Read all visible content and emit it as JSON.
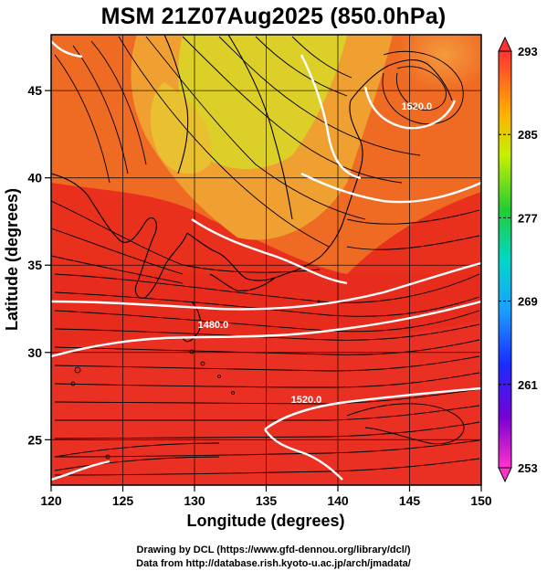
{
  "title": "MSM 21Z07Aug2025 (850.0hPa)",
  "map": {
    "xlabel": "Longitude (degrees)",
    "ylabel": "Latitude  (degrees)",
    "lon_range": [
      120,
      150
    ],
    "lat_range": [
      22.4,
      48.2
    ],
    "lon_ticks": [
      120,
      125,
      130,
      135,
      140,
      145,
      150
    ],
    "lat_ticks": [
      25,
      30,
      35,
      40,
      45
    ]
  },
  "colorbar": {
    "ticks": [
      293,
      285,
      277,
      269,
      261,
      253
    ],
    "range": [
      253,
      293
    ]
  },
  "contours": {
    "labels": [
      {
        "text": "1480.0",
        "lon": 131.3,
        "lat": 31.4
      },
      {
        "text": "1520.0",
        "lon": 137.8,
        "lat": 27.1
      },
      {
        "text": "1520.0",
        "lon": 145.5,
        "lat": 43.9
      }
    ]
  },
  "credits": {
    "line1": "Drawing by DCL (https://www.gfd-dennou.org/library/dcl/)",
    "line2": "Data from http://database.rish.kyoto-u.ac.jp/arch/jmadata/"
  }
}
